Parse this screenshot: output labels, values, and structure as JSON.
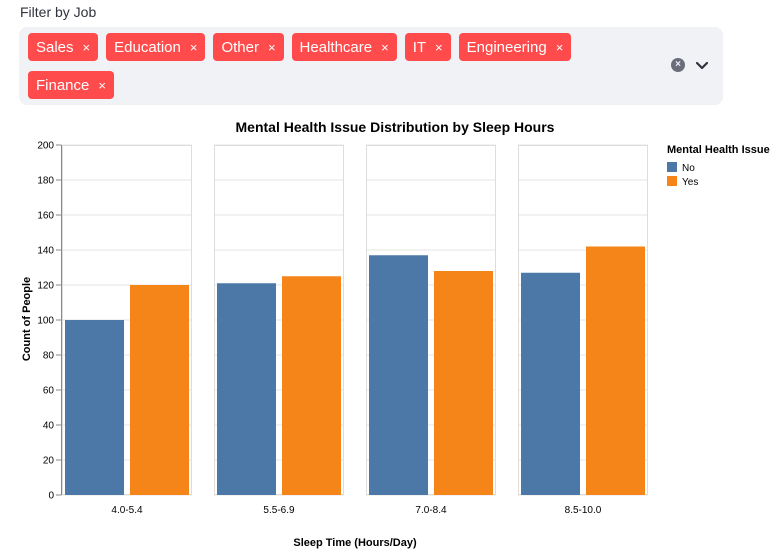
{
  "filter": {
    "label": "Filter by Job",
    "tags": [
      {
        "label": "Sales"
      },
      {
        "label": "Education"
      },
      {
        "label": "Other"
      },
      {
        "label": "Healthcare"
      },
      {
        "label": "IT"
      },
      {
        "label": "Engineering"
      },
      {
        "label": "Finance"
      }
    ],
    "remove_glyph": "×",
    "clear_glyph": "×"
  },
  "colors": {
    "tag_bg": "#ff4b4b",
    "no": "#4c78a8",
    "yes": "#f58518"
  },
  "chart_data": {
    "type": "bar",
    "title": "Mental Health Issue Distribution by Sleep Hours",
    "xlabel": "Sleep Time (Hours/Day)",
    "ylabel": "Count of People",
    "ylim": [
      0,
      200
    ],
    "yticks": [
      0,
      20,
      40,
      60,
      80,
      100,
      120,
      140,
      160,
      180,
      200
    ],
    "grid": true,
    "legend": {
      "title": "Mental Health Issue",
      "position": "top-right"
    },
    "categories": [
      "4.0-5.4",
      "5.5-6.9",
      "7.0-8.4",
      "8.5-10.0"
    ],
    "series": [
      {
        "name": "No",
        "color": "#4c78a8",
        "values": [
          100,
          121,
          137,
          127
        ]
      },
      {
        "name": "Yes",
        "color": "#f58518",
        "values": [
          120,
          125,
          128,
          142
        ]
      }
    ]
  }
}
